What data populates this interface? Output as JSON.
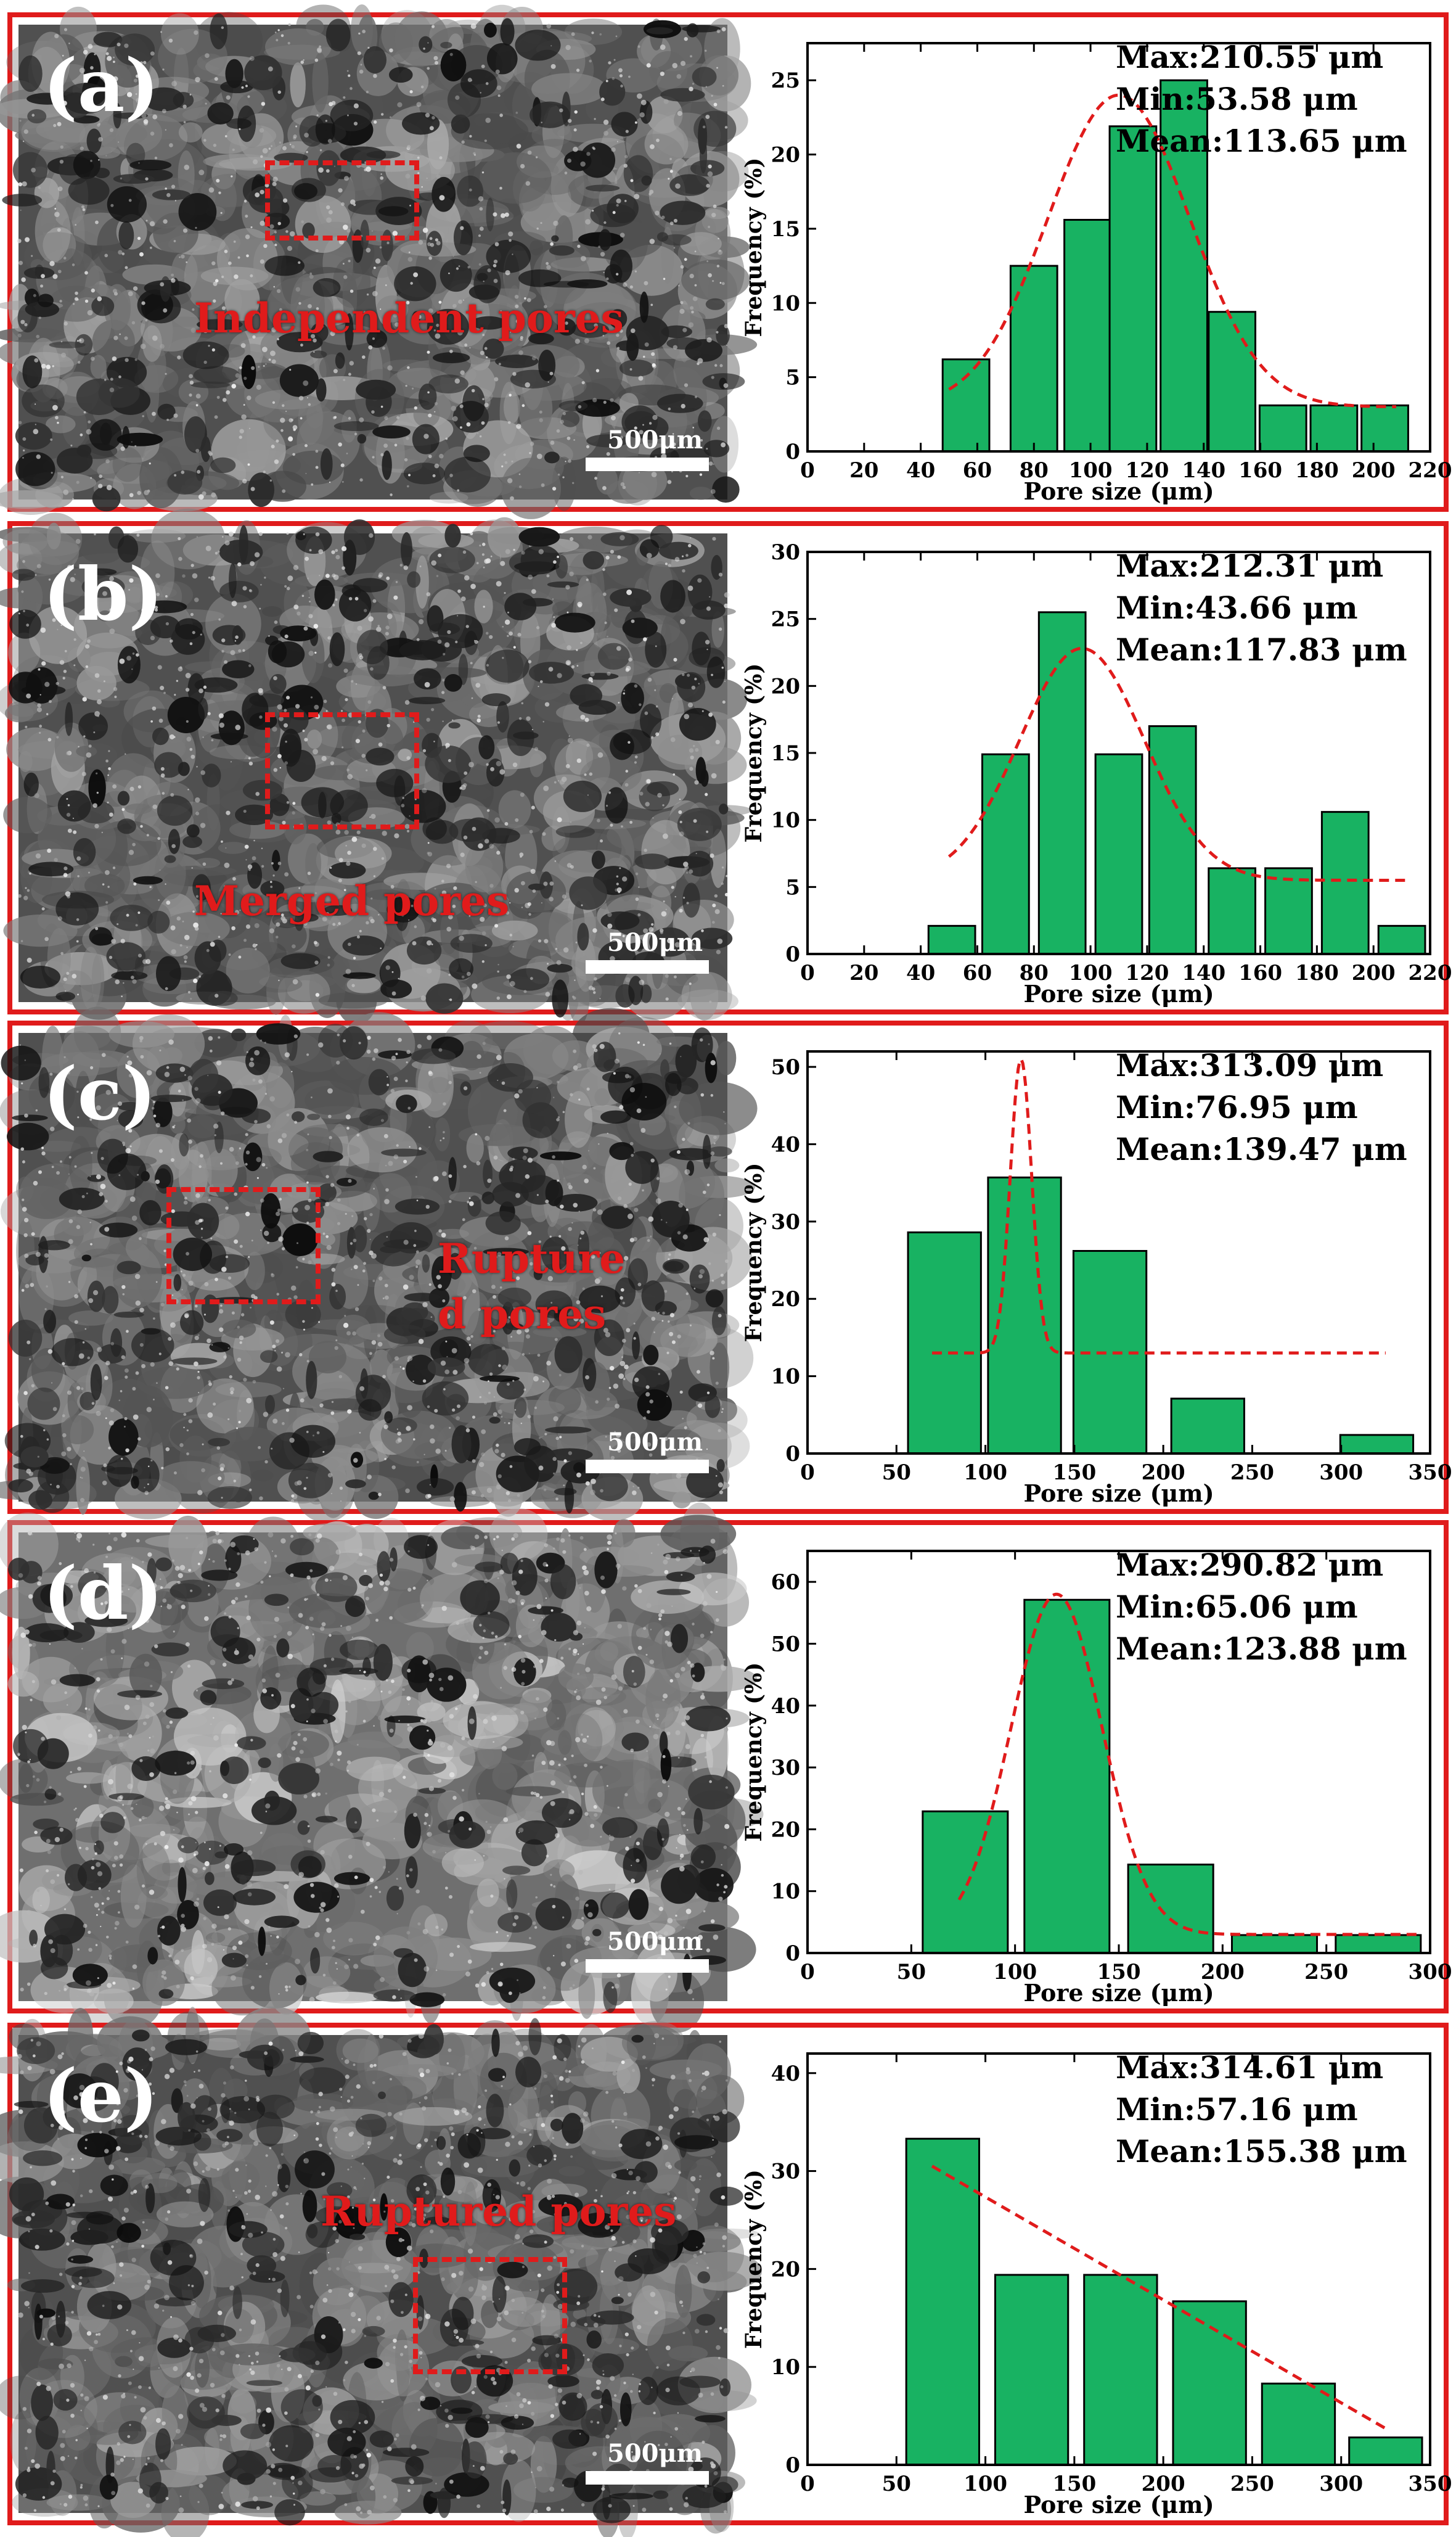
{
  "colors": {
    "frame": "#e01b1b",
    "bar": "#18b262",
    "bar_edge": "#000000",
    "fit": "#e01b1b",
    "label": "#ffffff"
  },
  "panels": [
    {
      "label": "(a)",
      "annotation": [
        "Independent pores"
      ],
      "scale_text": "500μm",
      "stats": [
        "Max:210.55 μm",
        "Min:53.58 μm",
        "Mean:113.65 μm"
      ]
    },
    {
      "label": "(b)",
      "annotation": [
        "Merged pores"
      ],
      "scale_text": "500μm",
      "stats": [
        "Max:212.31 μm",
        "Min:43.66 μm",
        "Mean:117.83 μm"
      ]
    },
    {
      "label": "(c)",
      "annotation": [
        "Rupture",
        "d pores"
      ],
      "scale_text": "500μm",
      "stats": [
        "Max:313.09 μm",
        "Min:76.95 μm",
        "Mean:139.47 μm"
      ]
    },
    {
      "label": "(d)",
      "annotation": [],
      "scale_text": "500μm",
      "stats": [
        "Max:290.82 μm",
        "Min:65.06 μm",
        "Mean:123.88 μm"
      ]
    },
    {
      "label": "(e)",
      "annotation": [
        "Ruptured pores"
      ],
      "scale_text": "500μm",
      "stats": [
        "Max:314.61 μm",
        "Min:57.16 μm",
        "Mean:155.38 μm"
      ]
    }
  ],
  "chart_data": [
    {
      "type": "bar",
      "xlabel": "Pore size (μm)",
      "ylabel": "Frequency (%)",
      "xlim": [
        0,
        220
      ],
      "ylim": [
        0,
        27.5
      ],
      "xticks": [
        0,
        20,
        40,
        60,
        80,
        100,
        120,
        140,
        160,
        180,
        200,
        220
      ],
      "yticks": [
        0,
        5,
        10,
        15,
        20,
        25
      ],
      "bin_width": 16.5,
      "x": [
        56,
        80,
        99,
        115,
        133,
        150,
        168,
        186,
        204
      ],
      "values": [
        6.2,
        12.5,
        15.6,
        21.9,
        25.0,
        9.4,
        3.1,
        3.1,
        3.1
      ],
      "fit": {
        "type": "gaussian",
        "center": 110,
        "sigma": 25,
        "amplitude": 21,
        "baseline": 3,
        "range": [
          50,
          208
        ]
      }
    },
    {
      "type": "bar",
      "xlabel": "Pore size (μm)",
      "ylabel": "Frequency (%)",
      "xlim": [
        0,
        220
      ],
      "ylim": [
        0,
        30
      ],
      "xticks": [
        0,
        20,
        40,
        60,
        80,
        100,
        120,
        140,
        160,
        180,
        200,
        220
      ],
      "yticks": [
        0,
        5,
        10,
        15,
        20,
        25,
        30
      ],
      "bin_width": 16.5,
      "x": [
        51,
        70,
        90,
        110,
        129,
        150,
        170,
        190,
        210
      ],
      "values": [
        2.1,
        14.9,
        25.5,
        14.9,
        17.0,
        6.4,
        6.4,
        10.6,
        2.1
      ],
      "fit": {
        "type": "gaussian",
        "center": 97,
        "sigma": 22,
        "amplitude": 17.3,
        "baseline": 5.5,
        "range": [
          50,
          212
        ]
      }
    },
    {
      "type": "bar",
      "xlabel": "Pore size (μm)",
      "ylabel": "Frequency (%)",
      "xlim": [
        0,
        350
      ],
      "ylim": [
        0,
        52
      ],
      "xticks": [
        0,
        50,
        100,
        150,
        200,
        250,
        300,
        350
      ],
      "yticks": [
        0,
        10,
        20,
        30,
        40,
        50
      ],
      "bin_width": 41,
      "x": [
        77,
        122,
        170,
        225,
        320
      ],
      "values": [
        28.6,
        35.7,
        26.2,
        7.1,
        2.4
      ],
      "fit": {
        "type": "gaussian",
        "center": 120,
        "sigma": 6,
        "amplitude": 38,
        "baseline": 13,
        "range": [
          70,
          325
        ]
      }
    },
    {
      "type": "bar",
      "xlabel": "Pore size (μm)",
      "ylabel": "Frequency (%)",
      "xlim": [
        0,
        300
      ],
      "ylim": [
        0,
        65
      ],
      "xticks": [
        0,
        50,
        100,
        150,
        200,
        250,
        300
      ],
      "yticks": [
        0,
        10,
        20,
        30,
        40,
        50,
        60
      ],
      "bin_width": 41,
      "x": [
        76,
        125,
        175,
        225,
        275
      ],
      "values": [
        22.9,
        57.1,
        14.3,
        2.9,
        2.9
      ],
      "fit": {
        "type": "gaussian",
        "center": 120,
        "sigma": 22,
        "amplitude": 55,
        "baseline": 3,
        "range": [
          73,
          295
        ]
      }
    },
    {
      "type": "bar",
      "xlabel": "Pore size (μm)",
      "ylabel": "Frequency (%)",
      "xlim": [
        0,
        350
      ],
      "ylim": [
        0,
        42
      ],
      "xticks": [
        0,
        50,
        100,
        150,
        200,
        250,
        300,
        350
      ],
      "yticks": [
        0,
        10,
        20,
        30,
        40
      ],
      "bin_width": 41,
      "x": [
        76,
        126,
        176,
        226,
        276,
        325
      ],
      "values": [
        33.3,
        19.4,
        19.4,
        16.7,
        8.3,
        2.8
      ],
      "fit": {
        "type": "line",
        "points": [
          [
            70,
            30.5
          ],
          [
            327,
            3.5
          ]
        ]
      }
    }
  ]
}
